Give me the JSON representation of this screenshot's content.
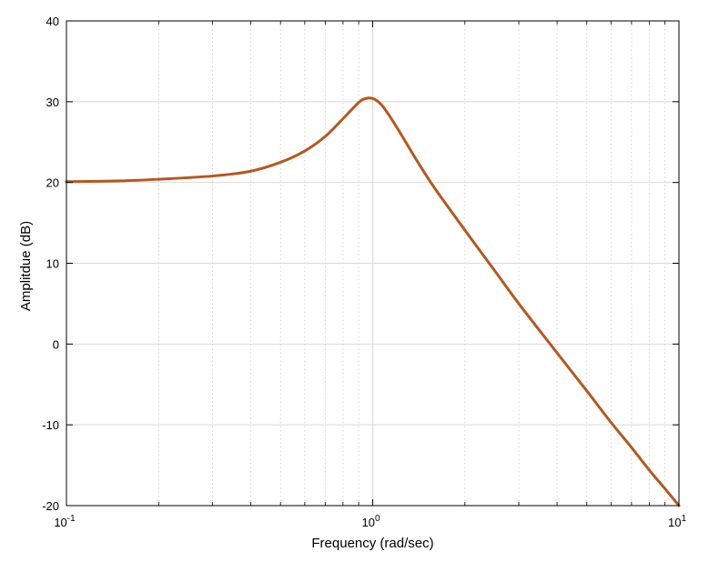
{
  "chart_data": {
    "type": "line",
    "xscale": "log",
    "xlabel": "Frequency (rad/sec)",
    "ylabel": "Amplitdue (dB)",
    "xlim": [
      0.1,
      10
    ],
    "ylim": [
      -20,
      40
    ],
    "x_ticks": [
      {
        "value": 0.1,
        "base": "10",
        "exp": "-1"
      },
      {
        "value": 1,
        "base": "10",
        "exp": "0"
      },
      {
        "value": 10,
        "base": "10",
        "exp": "1"
      }
    ],
    "y_ticks": [
      {
        "value": 40,
        "label": "40"
      },
      {
        "value": 30,
        "label": "30"
      },
      {
        "value": 20,
        "label": "20"
      },
      {
        "value": 10,
        "label": "10"
      },
      {
        "value": 0,
        "label": "0"
      },
      {
        "value": -10,
        "label": "-10"
      },
      {
        "value": -20,
        "label": "-20"
      }
    ],
    "grid": true,
    "minor_grid_x": true,
    "series": [
      {
        "color": "#b5581e",
        "x": [
          0.1,
          0.15,
          0.2,
          0.3,
          0.4,
          0.5,
          0.6,
          0.7,
          0.8,
          0.9,
          0.95,
          1.0,
          1.05,
          1.1,
          1.2,
          1.4,
          1.6,
          2.0,
          2.5,
          3.0,
          4.0,
          5.0,
          6.0,
          7.0,
          8.0,
          9.0,
          10.0
        ],
        "y": [
          20.1,
          20.2,
          20.4,
          20.8,
          21.4,
          22.5,
          23.9,
          25.7,
          27.9,
          29.9,
          30.4,
          30.4,
          29.9,
          29.0,
          26.8,
          22.6,
          19.2,
          14.1,
          9.1,
          5.0,
          -1.1,
          -5.8,
          -9.7,
          -12.8,
          -15.6,
          -17.9,
          -20.0
        ]
      }
    ]
  }
}
